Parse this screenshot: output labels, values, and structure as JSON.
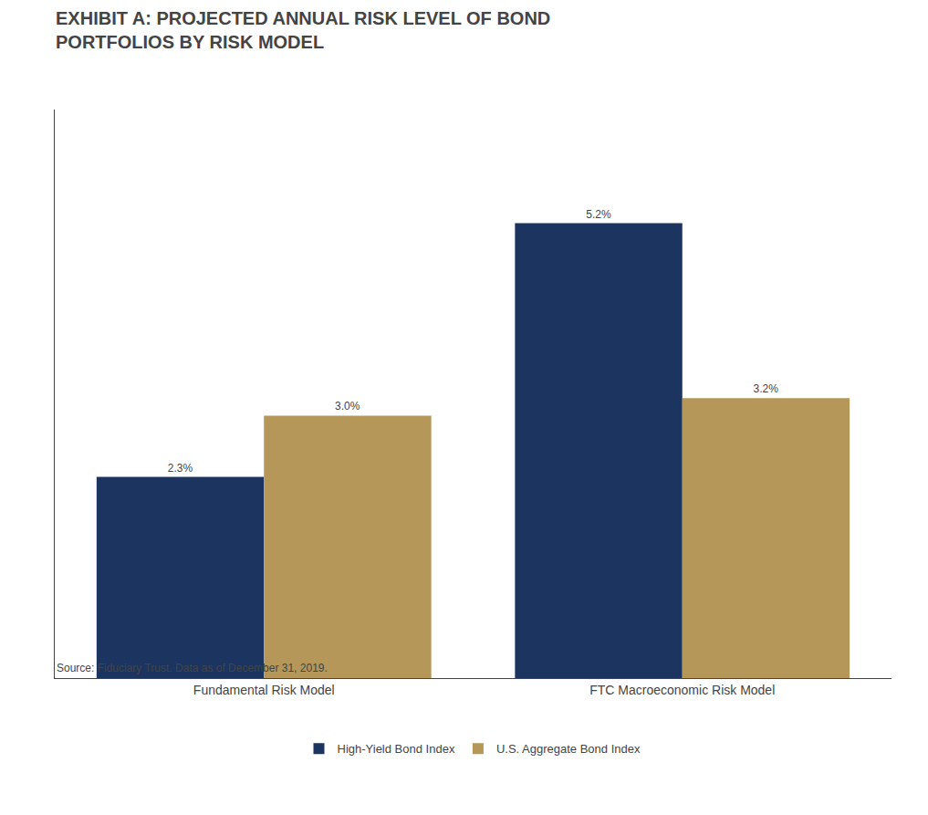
{
  "chart_data": {
    "type": "bar",
    "title": "EXHIBIT A: PROJECTED ANNUAL RISK LEVEL OF BOND\nPORTFOLIOS BY RISK MODEL",
    "categories": [
      "Fundamental Risk Model",
      "FTC Macroeconomic Risk Model"
    ],
    "series": [
      {
        "name": "High-Yield Bond Index",
        "color": "#1c3460",
        "values": [
          2.3,
          5.2
        ],
        "value_labels": [
          "2.3%",
          "5.2%"
        ]
      },
      {
        "name": "U.S. Aggregate Bond Index",
        "color": "#b5975a",
        "values": [
          3.0,
          3.2
        ],
        "value_labels": [
          "3.0%",
          "3.2%"
        ]
      }
    ],
    "ylim": [
      0,
      6.5
    ],
    "data_labels": true,
    "tick_labels": "x",
    "grid": false,
    "legend": "bottom",
    "annotations": [
      "Source: Fiduciary Trust. Data as of December 31, 2019."
    ]
  }
}
